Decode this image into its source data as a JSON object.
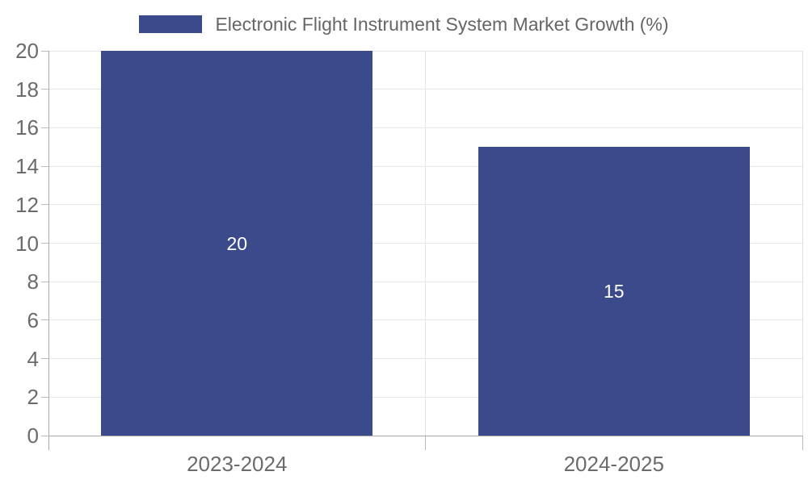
{
  "chart_data": {
    "type": "bar",
    "title": "Electronic Flight Instrument System Market Growth (%)",
    "legend": {
      "label": "Electronic Flight Instrument System Market Growth (%)",
      "position": "top-center"
    },
    "categories": [
      "2023-2024",
      "2024-2025"
    ],
    "values": [
      20,
      15
    ],
    "bar_labels": [
      "20",
      "15"
    ],
    "bar_label_position": "inside-middle",
    "xlabel": "",
    "ylabel": "",
    "ylim": [
      0,
      20
    ],
    "ytick_step": 2,
    "yticks": [
      0,
      2,
      4,
      6,
      8,
      10,
      12,
      14,
      16,
      18,
      20
    ],
    "grid": true,
    "colors": {
      "bar": "#3A4A8A",
      "grid": "#e6e6e6",
      "border": "#e0e0e0",
      "axis": "#aaaaaa",
      "tick": "#bbbbbb",
      "tick_text": "#6b6b6b",
      "legend_text": "#666666",
      "bar_label": "#ffffff",
      "background": "#ffffff"
    }
  }
}
